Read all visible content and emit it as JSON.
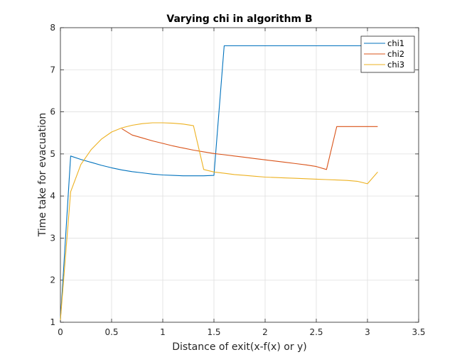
{
  "chart_data": {
    "type": "line",
    "title": "Varying chi in algorithm B",
    "xlabel": "Distance of exit(x-f(x) or y)",
    "ylabel": "Time take for evacuation",
    "xlim": [
      0,
      3.5
    ],
    "ylim": [
      1,
      8
    ],
    "x_ticks": [
      "0",
      "0.5",
      "1",
      "1.5",
      "2",
      "2.5",
      "3",
      "3.5"
    ],
    "y_ticks": [
      "1",
      "2",
      "3",
      "4",
      "5",
      "6",
      "7",
      "8"
    ],
    "grid": true,
    "legend_position": "top-right",
    "series": [
      {
        "name": "chi1",
        "color": "#0072BD",
        "x": [
          0,
          0.1,
          0.2,
          0.3,
          0.4,
          0.5,
          0.6,
          0.7,
          0.8,
          0.9,
          1.0,
          1.1,
          1.2,
          1.3,
          1.4,
          1.5,
          1.6,
          1.7,
          1.8,
          1.9,
          2.0,
          2.1,
          2.2,
          2.3,
          2.4,
          2.5,
          2.6,
          2.7,
          2.8,
          2.9,
          3.0,
          3.1
        ],
        "y": [
          1.05,
          4.95,
          4.87,
          4.8,
          4.73,
          4.67,
          4.62,
          4.58,
          4.55,
          4.52,
          4.5,
          4.49,
          4.48,
          4.48,
          4.48,
          4.49,
          7.57,
          7.57,
          7.57,
          7.57,
          7.57,
          7.57,
          7.57,
          7.57,
          7.57,
          7.57,
          7.57,
          7.57,
          7.57,
          7.57,
          7.57,
          7.57
        ]
      },
      {
        "name": "chi2",
        "color": "#D95319",
        "x": [
          0.6,
          0.7,
          0.8,
          0.9,
          1.0,
          1.1,
          1.2,
          1.3,
          1.4,
          1.5,
          1.6,
          1.7,
          1.8,
          1.9,
          2.0,
          2.1,
          2.2,
          2.3,
          2.4,
          2.5,
          2.6,
          2.7,
          2.8,
          2.9,
          3.0,
          3.1
        ],
        "y": [
          5.6,
          5.45,
          5.38,
          5.31,
          5.25,
          5.19,
          5.14,
          5.09,
          5.05,
          5.01,
          4.98,
          4.95,
          4.92,
          4.89,
          4.86,
          4.83,
          4.8,
          4.77,
          4.74,
          4.7,
          4.63,
          5.65,
          5.65,
          5.65,
          5.65,
          5.65
        ]
      },
      {
        "name": "chi3",
        "color": "#EDB120",
        "x": [
          0,
          0.1,
          0.2,
          0.3,
          0.4,
          0.5,
          0.6,
          0.7,
          0.8,
          0.9,
          1.0,
          1.1,
          1.2,
          1.3,
          1.4,
          1.5,
          1.6,
          1.7,
          1.8,
          1.9,
          2.0,
          2.1,
          2.2,
          2.3,
          2.4,
          2.5,
          2.6,
          2.7,
          2.8,
          2.9,
          3.0,
          3.1
        ],
        "y": [
          1.05,
          4.1,
          4.75,
          5.1,
          5.35,
          5.52,
          5.62,
          5.68,
          5.72,
          5.74,
          5.74,
          5.73,
          5.71,
          5.67,
          4.63,
          4.57,
          4.54,
          4.51,
          4.49,
          4.47,
          4.45,
          4.44,
          4.43,
          4.42,
          4.41,
          4.4,
          4.39,
          4.38,
          4.37,
          4.35,
          4.29,
          4.57
        ]
      }
    ]
  }
}
